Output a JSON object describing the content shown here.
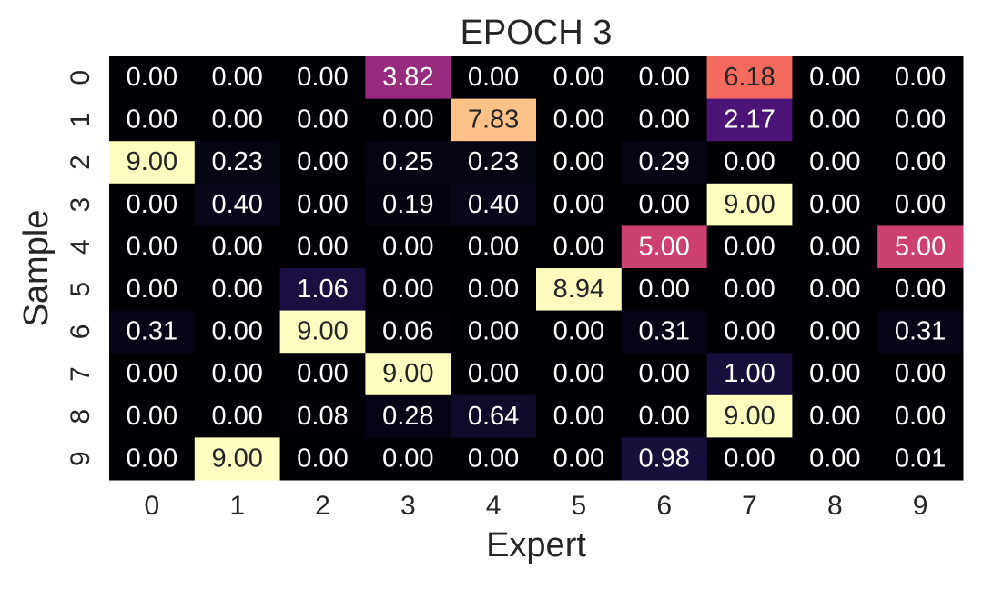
{
  "chart_data": {
    "type": "heatmap",
    "title": "EPOCH 3",
    "x_label": "Expert",
    "y_label": "Sample",
    "categories": [
      "0",
      "1",
      "2",
      "3",
      "4",
      "5",
      "6",
      "7",
      "8",
      "9"
    ],
    "y_categories": [
      "0",
      "1",
      "2",
      "3",
      "4",
      "5",
      "6",
      "7",
      "8",
      "9"
    ],
    "colormap": "magma",
    "values": [
      [
        0,
        0,
        0,
        3.82,
        0,
        0,
        0,
        6.18,
        0,
        0
      ],
      [
        0,
        0,
        0,
        0,
        7.83,
        0,
        0,
        2.17,
        0,
        0
      ],
      [
        9,
        0.23,
        0,
        0.25,
        0.23,
        0,
        0.29,
        0,
        0,
        0
      ],
      [
        0,
        0.4,
        0,
        0.19,
        0.4,
        0,
        0,
        9,
        0,
        0
      ],
      [
        0,
        0,
        0,
        0,
        0,
        0,
        5,
        0,
        0,
        5
      ],
      [
        0,
        0,
        1.06,
        0,
        0,
        8.94,
        0,
        0,
        0,
        0
      ],
      [
        0.31,
        0,
        9,
        0.06,
        0,
        0,
        0.31,
        0,
        0,
        0.31
      ],
      [
        0,
        0,
        0,
        9,
        0,
        0,
        0,
        1,
        0,
        0
      ],
      [
        0,
        0,
        0.08,
        0.28,
        0.64,
        0,
        0,
        9,
        0,
        0
      ],
      [
        0,
        9,
        0,
        0,
        0,
        0,
        0.98,
        0,
        0,
        0.01
      ]
    ],
    "value_labels": [
      [
        "0.00",
        "0.00",
        "0.00",
        "3.82",
        "0.00",
        "0.00",
        "0.00",
        "6.18",
        "0.00",
        "0.00"
      ],
      [
        "0.00",
        "0.00",
        "0.00",
        "0.00",
        "7.83",
        "0.00",
        "0.00",
        "2.17",
        "0.00",
        "0.00"
      ],
      [
        "9.00",
        "0.23",
        "0.00",
        "0.25",
        "0.23",
        "0.00",
        "0.29",
        "0.00",
        "0.00",
        "0.00"
      ],
      [
        "0.00",
        "0.40",
        "0.00",
        "0.19",
        "0.40",
        "0.00",
        "0.00",
        "9.00",
        "0.00",
        "0.00"
      ],
      [
        "0.00",
        "0.00",
        "0.00",
        "0.00",
        "0.00",
        "0.00",
        "5.00",
        "0.00",
        "0.00",
        "5.00"
      ],
      [
        "0.00",
        "0.00",
        "1.06",
        "0.00",
        "0.00",
        "8.94",
        "0.00",
        "0.00",
        "0.00",
        "0.00"
      ],
      [
        "0.31",
        "0.00",
        "9.00",
        "0.06",
        "0.00",
        "0.00",
        "0.31",
        "0.00",
        "0.00",
        "0.31"
      ],
      [
        "0.00",
        "0.00",
        "0.00",
        "9.00",
        "0.00",
        "0.00",
        "0.00",
        "1.00",
        "0.00",
        "0.00"
      ],
      [
        "0.00",
        "0.00",
        "0.08",
        "0.28",
        "0.64",
        "0.00",
        "0.00",
        "9.00",
        "0.00",
        "0.00"
      ],
      [
        "0.00",
        "9.00",
        "0.00",
        "0.00",
        "0.00",
        "0.00",
        "0.98",
        "0.00",
        "0.00",
        "0.01"
      ]
    ]
  }
}
